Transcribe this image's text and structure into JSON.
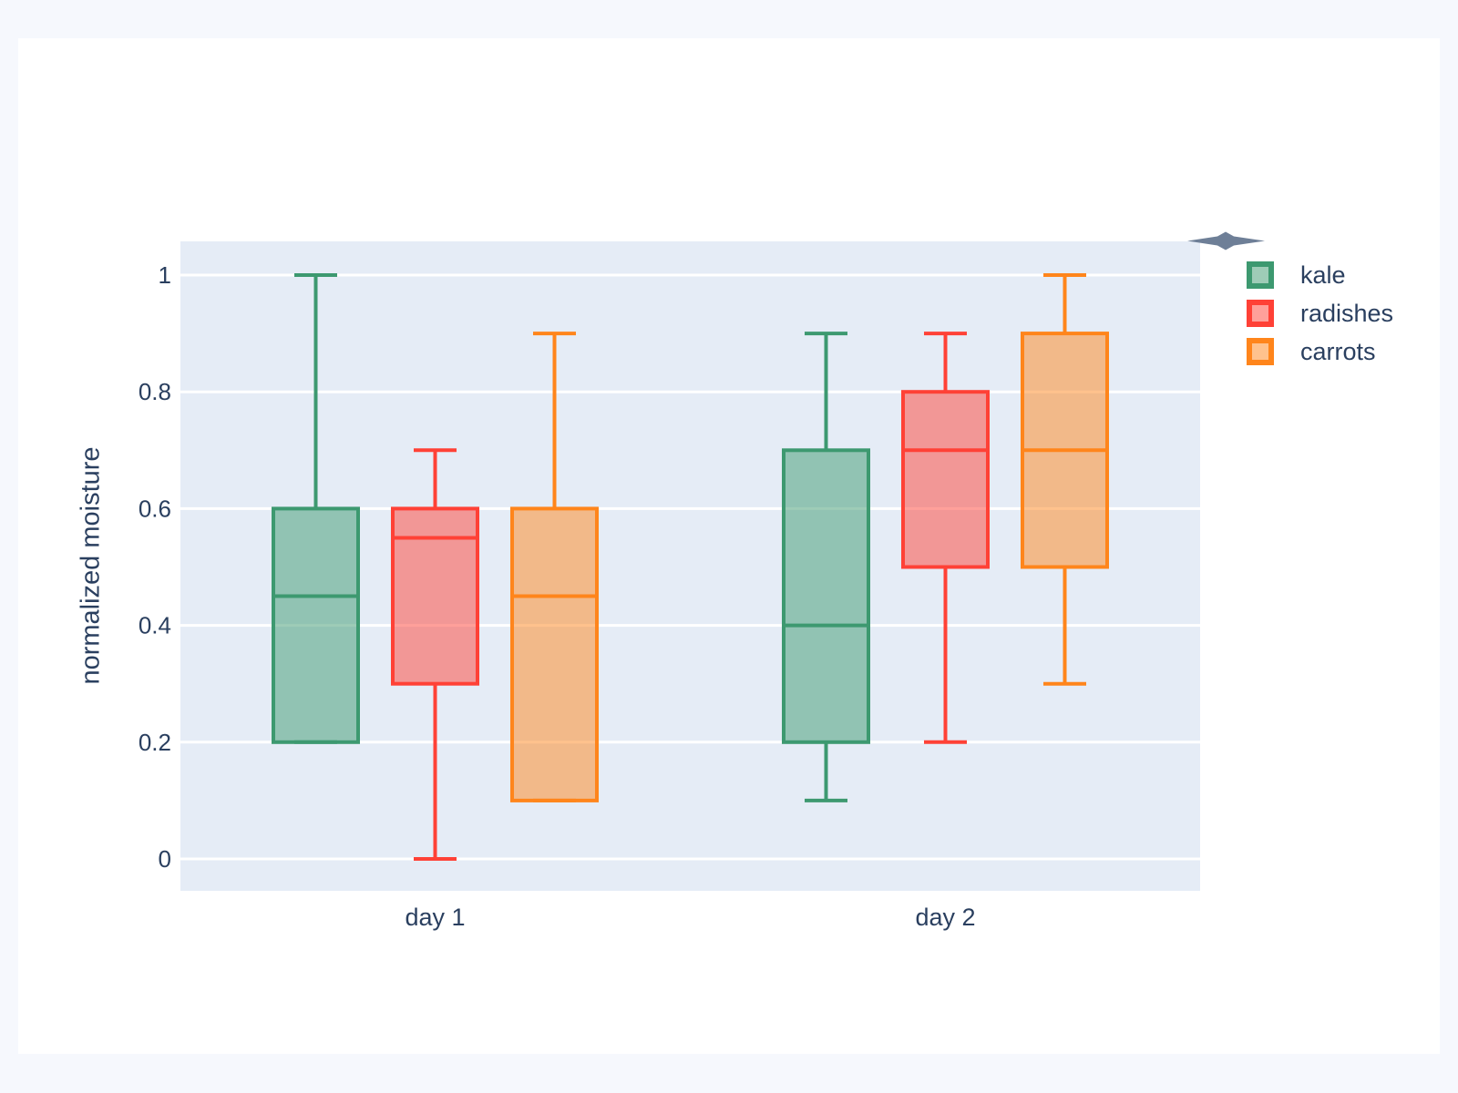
{
  "page": {
    "background": "#F6F8FD",
    "card_background": "#FFFFFF"
  },
  "chart_data": {
    "type": "box",
    "title": "",
    "xlabel": "",
    "ylabel": "normalized moisture",
    "categories": [
      "day 1",
      "day 2"
    ],
    "y_ticks": [
      0,
      0.2,
      0.4,
      0.6,
      0.8,
      1
    ],
    "y_tick_labels": [
      "0",
      "0.2",
      "0.4",
      "0.6",
      "0.8",
      "1"
    ],
    "ylim": [
      -0.06,
      1.06
    ],
    "grid": true,
    "legend_position": "top-right",
    "plot_background": "#E5ECF6",
    "grid_color": "#FFFFFF",
    "text_color": "#2A3F5F",
    "box_fill_opacity": 0.5,
    "series": [
      {
        "name": "kale",
        "color": "#3D9970",
        "boxes": [
          {
            "category": "day 1",
            "low": 0.2,
            "q1": 0.2,
            "median": 0.45,
            "q3": 0.6,
            "high": 1.0
          },
          {
            "category": "day 2",
            "low": 0.1,
            "q1": 0.2,
            "median": 0.4,
            "q3": 0.7,
            "high": 0.9
          }
        ]
      },
      {
        "name": "radishes",
        "color": "#FF4136",
        "boxes": [
          {
            "category": "day 1",
            "low": 0.0,
            "q1": 0.3,
            "median": 0.55,
            "q3": 0.6,
            "high": 0.7
          },
          {
            "category": "day 2",
            "low": 0.2,
            "q1": 0.5,
            "median": 0.7,
            "q3": 0.8,
            "high": 0.9
          }
        ]
      },
      {
        "name": "carrots",
        "color": "#FF851B",
        "boxes": [
          {
            "category": "day 1",
            "low": 0.1,
            "q1": 0.1,
            "median": 0.45,
            "q3": 0.6,
            "high": 0.9
          },
          {
            "category": "day 2",
            "low": 0.3,
            "q1": 0.5,
            "median": 0.7,
            "q3": 0.9,
            "high": 1.0
          }
        ]
      }
    ]
  },
  "decorations": {
    "pointer_star_color": "#6E7F97"
  }
}
